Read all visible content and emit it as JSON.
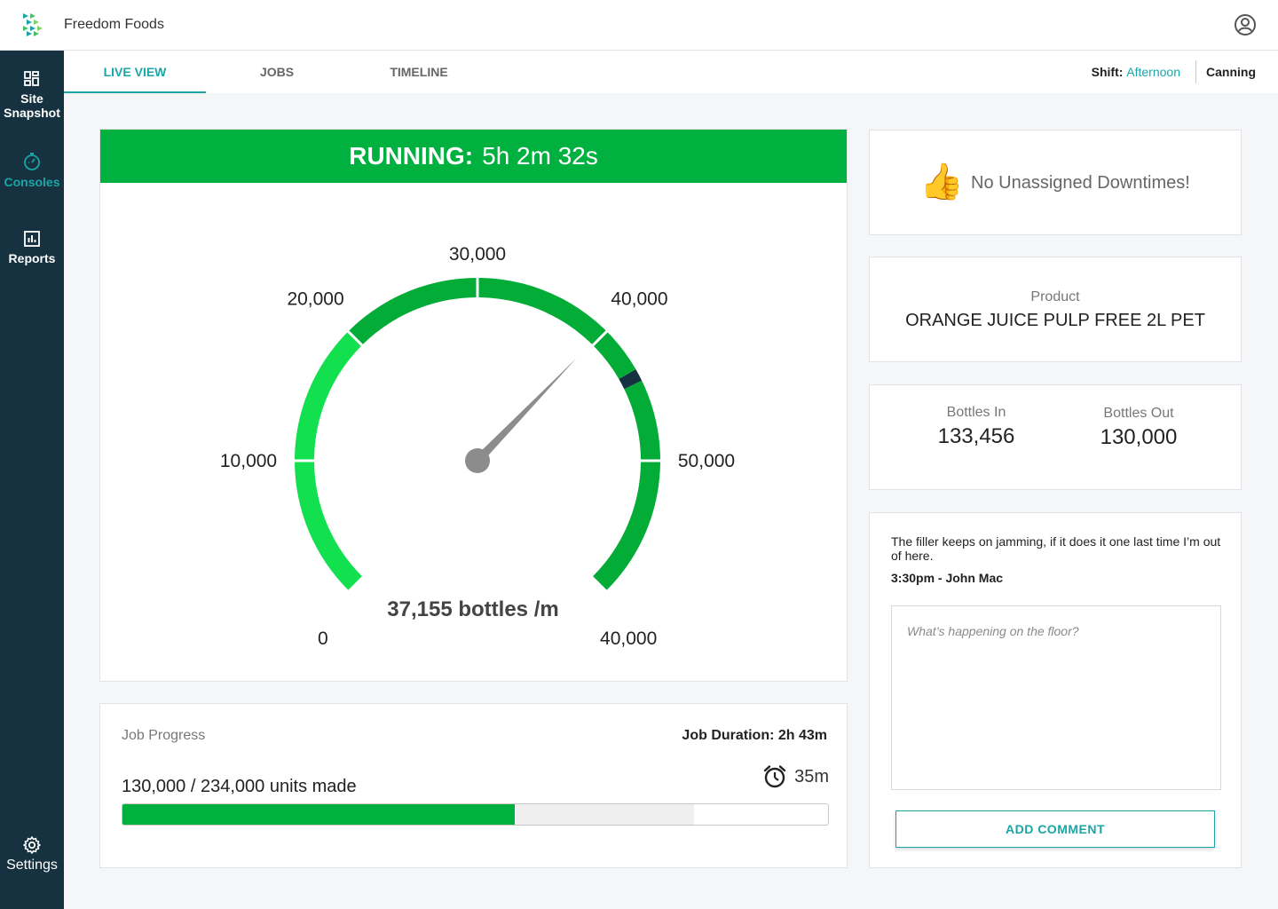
{
  "app": {
    "brand": "Freedom Foods"
  },
  "sidebar": {
    "items": [
      {
        "label": "Site Snapshot",
        "icon": "dashboard-grid-icon",
        "active": false
      },
      {
        "label": "Consoles",
        "icon": "gauge-dial-icon",
        "active": true
      },
      {
        "label": "Reports",
        "icon": "bar-chart-icon",
        "active": false
      }
    ],
    "settings": {
      "label": "Settings",
      "icon": "gear-icon"
    }
  },
  "tabs": [
    {
      "label": "LIVE VIEW",
      "active": true
    },
    {
      "label": "JOBS",
      "active": false
    },
    {
      "label": "TIMELINE",
      "active": false
    }
  ],
  "shift": {
    "label": "Shift:",
    "value": "Afternoon"
  },
  "line": "Canning",
  "status": {
    "state": "RUNNING:",
    "duration": "5h 2m 32s",
    "color": "#00b140"
  },
  "gauge": {
    "speed_label": "37,155 bottles /m",
    "speed_value": 37155,
    "ticks": [
      "0",
      "10,000",
      "20,000",
      "30,000",
      "40,000",
      "50,000",
      "40,000"
    ],
    "colors": {
      "light": "#12e04f",
      "dark": "#03ab37",
      "marker": "#163240",
      "needle": "#8c8c8c"
    }
  },
  "job_progress": {
    "label": "Job Progress",
    "duration": "Job Duration: 2h 43m",
    "units": "130,000 / 234,000 units made",
    "remaining": "35m",
    "made": 130000,
    "target": 234000,
    "planned_fraction": 0.81
  },
  "downtime": {
    "icon": "thumbs-up-icon",
    "message": "No Unassigned Downtimes!"
  },
  "product": {
    "label": "Product",
    "name": "ORANGE JUICE PULP FREE 2L PET"
  },
  "bottles": {
    "in_label": "Bottles In",
    "in_value": "133,456",
    "out_label": "Bottles Out",
    "out_value": "130,000"
  },
  "comments": {
    "latest_text": "The filler keeps on jamming, if it does it one last time I’m out of here.",
    "latest_meta": "3:30pm - John Mac",
    "placeholder": "What’s happening on the floor?",
    "button_label": "ADD COMMENT"
  }
}
